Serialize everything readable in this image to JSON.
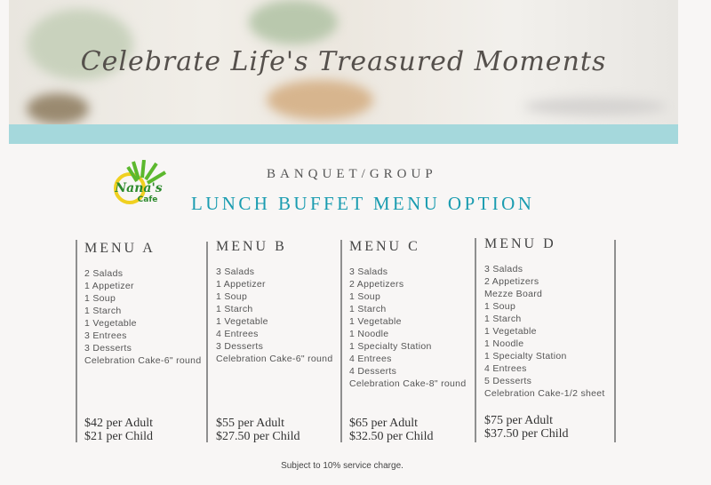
{
  "banner": {
    "tagline": "Celebrate Life's Treasured Moments",
    "strip_color": "#a5d8dc"
  },
  "logo": {
    "text": "Nana's Cafe"
  },
  "header": {
    "subtitle": "BANQUET/GROUP",
    "title": "LUNCH BUFFET MENU OPTION",
    "title_color": "#1a9cb0"
  },
  "menus": [
    {
      "name": "MENU A",
      "items": [
        "2 Salads",
        "1 Appetizer",
        "1 Soup",
        "1 Starch",
        "1 Vegetable",
        "3 Entrees",
        "3 Desserts",
        "Celebration Cake-6\" round"
      ],
      "adult": "$42 per Adult",
      "child": "$21 per Child"
    },
    {
      "name": "MENU B",
      "items": [
        "3 Salads",
        "1 Appetizer",
        "1 Soup",
        "1 Starch",
        "1 Vegetable",
        "4 Entrees",
        "3 Desserts",
        "Celebration Cake-6\" round"
      ],
      "adult": "$55 per Adult",
      "child": "$27.50 per Child"
    },
    {
      "name": "MENU C",
      "items": [
        "3 Salads",
        "2 Appetizers",
        "1 Soup",
        "1 Starch",
        "1 Vegetable",
        "1 Noodle",
        "1 Specialty Station",
        "4 Entrees",
        "4 Desserts",
        "Celebration Cake-8\" round"
      ],
      "adult": "$65 per Adult",
      "child": "$32.50 per Child"
    },
    {
      "name": "MENU D",
      "items": [
        "3 Salads",
        "2 Appetizers",
        "Mezze Board",
        "1 Soup",
        "1 Starch",
        "1 Vegetable",
        "1 Noodle",
        "1 Specialty Station",
        "4 Entrees",
        "5 Desserts",
        "Celebration Cake-1/2 sheet"
      ],
      "adult": "$75 per Adult",
      "child": "$37.50 per Child"
    }
  ],
  "footer": {
    "note": "Subject to 10% service charge."
  }
}
